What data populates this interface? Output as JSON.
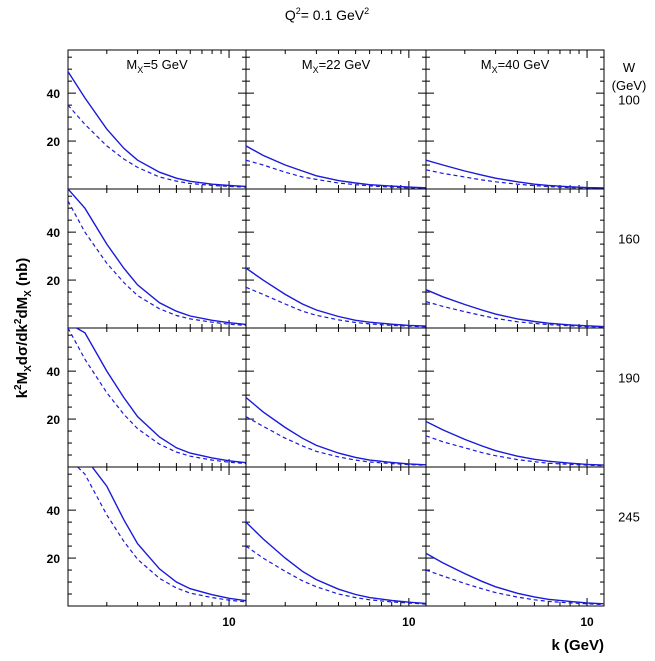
{
  "chart_data": {
    "type": "line",
    "title": "Q²= 0.1 GeV²",
    "title_base": "Q",
    "title_sup": "2",
    "title_mid": "= 0.1 GeV",
    "title_sup2": "2",
    "ylabel": "k²M_X dσ/dk²dM_X (nb)",
    "ylabel_parts": {
      "k": "k",
      "k_sup": "2",
      "M": "M",
      "M_sub": "X",
      "mid": "dσ/dk",
      "mid_sup": "2",
      "dM": "dM",
      "dM_sub": "X",
      "units": " (nb)"
    },
    "xlabel": "k (GeV)",
    "x_scale": "log",
    "xlim": [
      1.2,
      12.5
    ],
    "ylim": [
      0,
      58
    ],
    "y_ticks": [
      20,
      40
    ],
    "x_ticks": [
      10
    ],
    "x_tick_label": "10",
    "col_labels": [
      {
        "pre": "M",
        "sub": "X",
        "post": "=5 GeV"
      },
      {
        "pre": "M",
        "sub": "X",
        "post": "=22 GeV"
      },
      {
        "pre": "M",
        "sub": "X",
        "post": "=40 GeV"
      }
    ],
    "row_header_line1": "W",
    "row_header_line2": "(GeV)",
    "row_labels": [
      "100",
      "160",
      "190",
      "245"
    ],
    "line_color": "#1a1ad8",
    "x": [
      1.2,
      1.5,
      2,
      2.5,
      3,
      4,
      5,
      6,
      8,
      10,
      12.5
    ],
    "panels": [
      [
        {
          "solid": [
            49,
            38,
            25,
            17,
            12,
            7,
            4.5,
            3.2,
            2.0,
            1.5,
            1.1
          ],
          "dashed": [
            35,
            27,
            18,
            12.5,
            9,
            5,
            3.3,
            2.3,
            1.5,
            1.1,
            0.8
          ]
        },
        {
          "solid": [
            18,
            14,
            10,
            7.5,
            5.5,
            3.5,
            2.5,
            1.8,
            1.2,
            0.8,
            0.5
          ],
          "dashed": [
            12,
            10,
            7,
            5,
            4,
            2.5,
            1.8,
            1.3,
            0.8,
            0.5,
            0.4
          ]
        },
        {
          "solid": [
            12,
            10,
            7.5,
            5.8,
            4.5,
            3,
            2,
            1.5,
            0.9,
            0.6,
            0.4
          ],
          "dashed": [
            8,
            6.5,
            5,
            3.8,
            3,
            2,
            1.4,
            1,
            0.6,
            0.4,
            0.3
          ]
        }
      ],
      [
        {
          "solid": [
            58,
            50,
            35,
            25,
            18,
            10.5,
            7,
            5,
            3.2,
            2.2,
            1.5
          ],
          "dashed": [
            53,
            40,
            27,
            19,
            13.5,
            8,
            5.2,
            3.8,
            2.4,
            1.6,
            1.1
          ]
        },
        {
          "solid": [
            25,
            20,
            14,
            10,
            7.5,
            4.8,
            3.2,
            2.4,
            1.6,
            1.1,
            0.8
          ],
          "dashed": [
            17,
            14,
            10,
            7,
            5.3,
            3.4,
            2.3,
            1.7,
            1.1,
            0.8,
            0.5
          ]
        },
        {
          "solid": [
            16,
            13,
            9.8,
            7.5,
            5.8,
            3.8,
            2.7,
            2,
            1.3,
            0.9,
            0.6
          ],
          "dashed": [
            11,
            9,
            6.8,
            5.2,
            4,
            2.6,
            1.9,
            1.4,
            0.9,
            0.6,
            0.4
          ]
        }
      ],
      [
        {
          "solid": [
            60,
            56,
            40,
            29,
            21,
            12.5,
            8,
            5.8,
            3.8,
            2.6,
            1.8
          ],
          "dashed": [
            58,
            45,
            31,
            22,
            16,
            9.5,
            6.2,
            4.5,
            2.9,
            2,
            1.4
          ]
        },
        {
          "solid": [
            29,
            23,
            16.5,
            12,
            9,
            5.8,
            4,
            2.9,
            1.9,
            1.3,
            0.9
          ],
          "dashed": [
            21,
            17,
            12,
            8.8,
            6.5,
            4.2,
            2.9,
            2.1,
            1.4,
            1,
            0.7
          ]
        },
        {
          "solid": [
            19,
            15.5,
            11.5,
            8.8,
            6.8,
            4.5,
            3.2,
            2.4,
            1.6,
            1.1,
            0.8
          ],
          "dashed": [
            13,
            10.5,
            8,
            6,
            4.7,
            3.1,
            2.2,
            1.6,
            1.1,
            0.8,
            0.5
          ]
        }
      ],
      [
        {
          "solid": [
            62,
            62,
            50,
            36,
            26,
            15.5,
            10,
            7.2,
            4.7,
            3.2,
            2.2
          ],
          "dashed": [
            62,
            55,
            38,
            27,
            19.5,
            11.5,
            7.5,
            5.4,
            3.5,
            2.4,
            1.7
          ]
        },
        {
          "solid": [
            35,
            28,
            20,
            14.5,
            11,
            7,
            4.8,
            3.5,
            2.3,
            1.6,
            1.1
          ],
          "dashed": [
            25,
            20,
            14.5,
            10.5,
            8,
            5,
            3.5,
            2.6,
            1.7,
            1.2,
            0.8
          ]
        },
        {
          "solid": [
            22,
            18,
            13.5,
            10.3,
            8,
            5.3,
            3.8,
            2.8,
            1.9,
            1.3,
            0.9
          ],
          "dashed": [
            15,
            12.5,
            9.4,
            7.2,
            5.6,
            3.7,
            2.6,
            1.9,
            1.3,
            0.9,
            0.6
          ]
        }
      ]
    ]
  }
}
